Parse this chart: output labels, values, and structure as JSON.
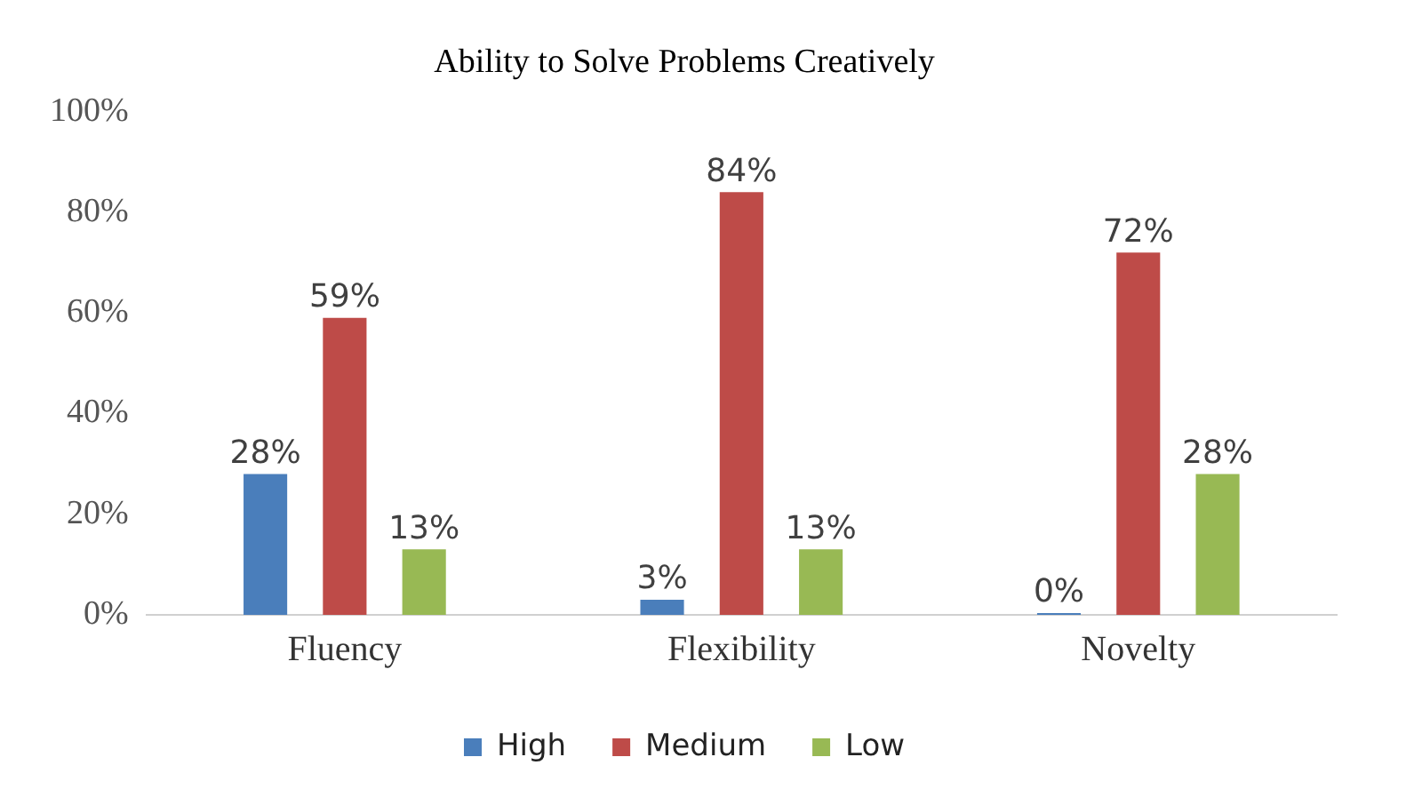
{
  "chart_data": {
    "type": "bar",
    "title": "Ability to Solve Problems Creatively",
    "categories": [
      "Fluency",
      "Flexibility",
      "Novelty"
    ],
    "series": [
      {
        "name": "High",
        "color": "#4a7ebb",
        "values": [
          28,
          3,
          0
        ],
        "value_labels": [
          "28%",
          "3%",
          "0%"
        ]
      },
      {
        "name": "Medium",
        "color": "#be4b48",
        "values": [
          59,
          84,
          72
        ],
        "value_labels": [
          "59%",
          "84%",
          "72%"
        ]
      },
      {
        "name": "Low",
        "color": "#98b954",
        "values": [
          13,
          13,
          28
        ],
        "value_labels": [
          "13%",
          "13%",
          "28%"
        ]
      }
    ],
    "ylim": [
      0,
      100
    ],
    "yticks": [
      {
        "value": 0,
        "label": "0%"
      },
      {
        "value": 20,
        "label": "20%"
      },
      {
        "value": 40,
        "label": "40%"
      },
      {
        "value": 60,
        "label": "60%"
      },
      {
        "value": 80,
        "label": "80%"
      },
      {
        "value": 100,
        "label": "100%"
      }
    ],
    "legend": "bottom"
  }
}
